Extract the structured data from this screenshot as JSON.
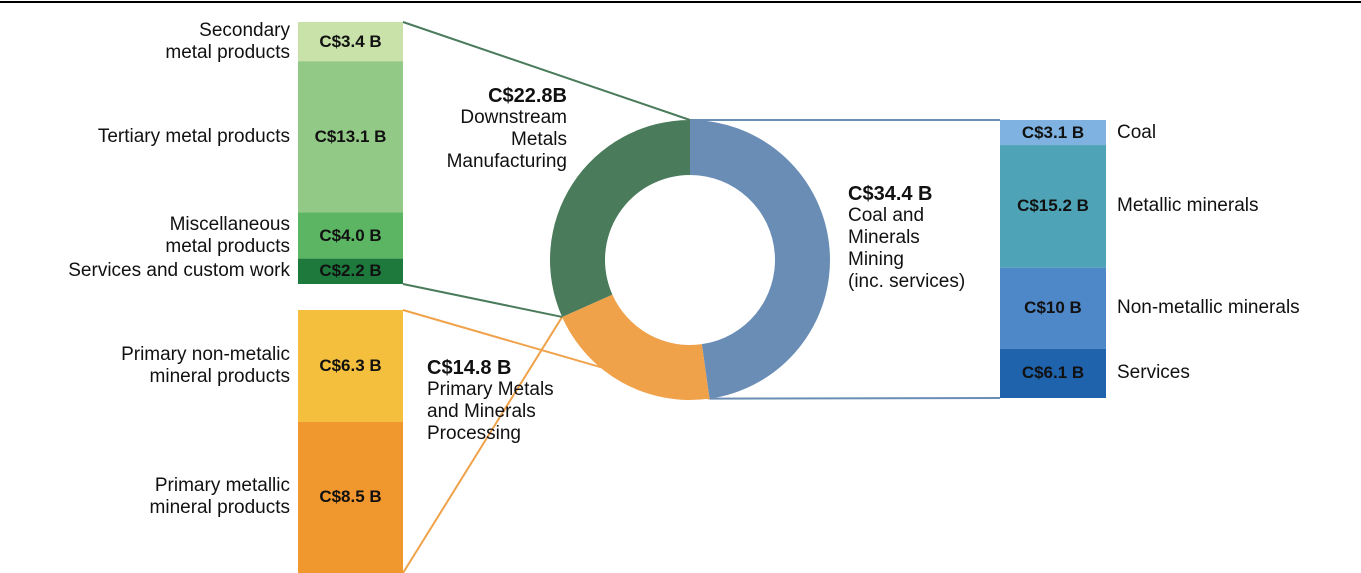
{
  "chart_data": {
    "type": "donut",
    "categories": [
      "Coal and\nMinerals\nMining\n(inc. services)",
      "Primary Metals\nand Minerals\nProcessing",
      "Downstream\nMetals\nManufacturing"
    ],
    "values": [
      34.4,
      14.8,
      22.8
    ],
    "value_labels": [
      "C$34.4 B",
      "C$14.8 B",
      "C$22.8B"
    ],
    "colors": [
      "#6a8db5",
      "#f0a24a",
      "#4a7b5b"
    ],
    "breakdowns": [
      {
        "categories": [
          "Coal",
          "Metallic minerals",
          "Non-metallic minerals",
          "Services"
        ],
        "values": [
          3.1,
          15.2,
          10,
          6.1
        ],
        "value_labels": [
          "C$3.1 B",
          "C$15.2 B",
          "C$10 B",
          "C$6.1 B"
        ],
        "colors": [
          "#7fb2e0",
          "#4fa3b7",
          "#4f88c9",
          "#1f63ad"
        ]
      },
      {
        "categories": [
          "Primary non-metalic\nmineral products",
          "Primary metallic\nmineral products"
        ],
        "values": [
          6.3,
          8.5
        ],
        "value_labels": [
          "C$6.3 B",
          "C$8.5 B"
        ],
        "colors": [
          "#f5bf3e",
          "#f0972e"
        ]
      },
      {
        "categories": [
          "Secondary\nmetal products",
          "Tertiary metal products",
          "Miscellaneous\nmetal products",
          "Services and custom work"
        ],
        "values": [
          3.4,
          13.1,
          4.0,
          2.2
        ],
        "value_labels": [
          "C$3.4 B",
          "C$13.1 B",
          "C$4.0 B",
          "C$2.2 B"
        ],
        "colors": [
          "#c9e2a9",
          "#93c987",
          "#5cb563",
          "#1e7a3c"
        ]
      }
    ]
  }
}
